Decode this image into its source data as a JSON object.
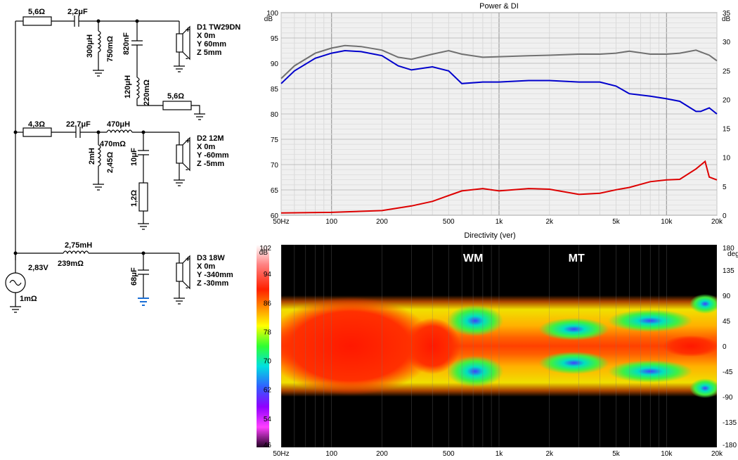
{
  "schematic": {
    "r1": "5,6Ω",
    "c1": "2,2μF",
    "l1": "300μH",
    "l1r": "750mΩ",
    "c2": "820nF",
    "l2": "120μH",
    "l2r": "220mΩ",
    "r2": "5,6Ω",
    "d1_name": "D1 TW29DN",
    "d1_x": "X 0m",
    "d1_y": "Y 60mm",
    "d1_z": "Z 5mm",
    "r3": "4,3Ω",
    "c3": "22,7μF",
    "l3": "470μH",
    "l3r": "470mΩ",
    "l4": "2mH",
    "l4r": "2,45Ω",
    "c4": "10μF",
    "r4": "1,2Ω",
    "d2_name": "D2 12M",
    "d2_x": "X 0m",
    "d2_y": "Y -60mm",
    "d2_z": "Z -5mm",
    "l5": "2,75mH",
    "l5r": "239mΩ",
    "c5": "68μF",
    "d3_name": "D3 18W",
    "d3_x": "X 0m",
    "d3_y": "Y -340mm",
    "d3_z": "Z -30mm",
    "src_v": "2,83V",
    "src_r": "1mΩ",
    "plus": "+",
    "minus": "-"
  },
  "chart_data": [
    {
      "type": "line",
      "title": "Power & DI",
      "x_scale": "log",
      "xlim": [
        50,
        20000
      ],
      "x_ticks": [
        "50Hz",
        "100",
        "200",
        "500",
        "1k",
        "2k",
        "5k",
        "10k",
        "20k"
      ],
      "x_tick_values": [
        50,
        100,
        200,
        500,
        1000,
        2000,
        5000,
        10000,
        20000
      ],
      "y_left_unit": "dB",
      "y_right_unit": "dB",
      "ylim": [
        60,
        100
      ],
      "y_ticks": [
        "100",
        "95",
        "90",
        "85",
        "80",
        "75",
        "70",
        "65",
        "60"
      ],
      "y2lim": [
        0,
        35
      ],
      "y2_ticks": [
        "35",
        "30",
        "25",
        "20",
        "15",
        "10",
        "5",
        "0"
      ],
      "grid": true,
      "series": [
        {
          "color": "#707070",
          "axis": "left",
          "x": [
            50,
            60,
            80,
            100,
            120,
            150,
            200,
            250,
            300,
            400,
            500,
            600,
            800,
            1000,
            1500,
            2000,
            3000,
            4000,
            5000,
            6000,
            8000,
            10000,
            12000,
            15000,
            18000,
            20000
          ],
          "y": [
            87,
            89.5,
            92,
            93,
            93.5,
            93.3,
            92.6,
            91.2,
            90.8,
            91.8,
            92.5,
            91.8,
            91.2,
            91.3,
            91.5,
            91.6,
            91.8,
            91.8,
            92,
            92.4,
            91.8,
            91.8,
            92,
            92.6,
            91.6,
            90.5
          ]
        },
        {
          "color": "#0000cc",
          "axis": "left",
          "x": [
            50,
            60,
            80,
            100,
            120,
            150,
            200,
            250,
            300,
            400,
            500,
            600,
            800,
            1000,
            1500,
            2000,
            3000,
            4000,
            5000,
            6000,
            8000,
            10000,
            12000,
            15000,
            16000,
            18000,
            20000
          ],
          "y": [
            86,
            88.5,
            91,
            92,
            92.5,
            92.3,
            91.5,
            89.5,
            88.7,
            89.3,
            88.5,
            86,
            86.3,
            86.3,
            86.6,
            86.6,
            86.3,
            86.3,
            85.5,
            84,
            83.5,
            83,
            82.5,
            80.5,
            80.5,
            81.2,
            80
          ]
        },
        {
          "color": "#dd0000",
          "axis": "right",
          "x": [
            50,
            100,
            200,
            300,
            400,
            500,
            600,
            800,
            1000,
            1500,
            2000,
            3000,
            4000,
            5000,
            6000,
            8000,
            10000,
            12000,
            15000,
            17000,
            18000,
            20000
          ],
          "y": [
            0.4,
            0.5,
            0.8,
            1.6,
            2.4,
            3.4,
            4.2,
            4.6,
            4.2,
            4.6,
            4.5,
            3.6,
            3.8,
            4.4,
            4.8,
            5.8,
            6.1,
            6.2,
            8,
            9.3,
            6.6,
            6.1
          ]
        }
      ]
    },
    {
      "type": "heatmap",
      "title": "Directivity (ver)",
      "x_scale": "log",
      "xlim": [
        50,
        20000
      ],
      "x_ticks": [
        "50Hz",
        "100",
        "200",
        "500",
        "1k",
        "2k",
        "5k",
        "10k",
        "20k"
      ],
      "x_tick_values": [
        50,
        100,
        200,
        500,
        1000,
        2000,
        5000,
        10000,
        20000
      ],
      "color_unit": "dB",
      "color_scale": [
        "102",
        "94",
        "86",
        "78",
        "70",
        "62",
        "54",
        "46"
      ],
      "angle_unit": "deg",
      "angle_ticks": [
        "180",
        "135",
        "90",
        "45",
        "0",
        "-45",
        "-90",
        "-135",
        "-180"
      ],
      "ylim": [
        -180,
        180
      ],
      "data_range_deg": [
        -90,
        90
      ],
      "annotations": [
        {
          "text": "WM",
          "x": 700,
          "y": 150
        },
        {
          "text": "MT",
          "x": 2900,
          "y": 150
        }
      ]
    }
  ]
}
